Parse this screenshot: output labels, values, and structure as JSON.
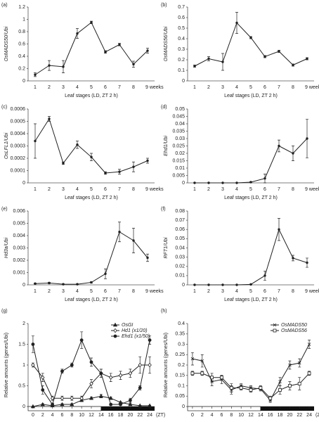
{
  "chart_data": [
    {
      "label": "(a)",
      "type": "line",
      "ylabel": "OsMADS50/Ubi",
      "xlabel": "Leaf stages (LD, ZT 2 h)",
      "color": "#222222",
      "marker": "dot",
      "categories": [
        "1",
        "2",
        "3",
        "4",
        "5",
        "6",
        "7",
        "8",
        "9 weeks"
      ],
      "values": [
        0.1,
        0.25,
        0.23,
        0.77,
        0.95,
        0.47,
        0.59,
        0.27,
        0.49
      ],
      "errors": [
        0.03,
        0.08,
        0.1,
        0.08,
        0.02,
        0.02,
        0.02,
        0.05,
        0.04
      ],
      "ylim": [
        0,
        1.2
      ],
      "yticks": [
        0,
        0.2,
        0.4,
        0.6,
        0.8,
        1,
        1.2
      ]
    },
    {
      "label": "(b)",
      "type": "line",
      "ylabel": "OsMADS56/Ubi",
      "xlabel": "Leaf stages (LD, ZT 2 h)",
      "color": "#222222",
      "marker": "dot",
      "categories": [
        "1",
        "2",
        "3",
        "4",
        "5",
        "6",
        "7",
        "8",
        "9 weeks"
      ],
      "values": [
        0.14,
        0.21,
        0.18,
        0.55,
        0.41,
        0.23,
        0.28,
        0.15,
        0.21
      ],
      "errors": [
        0.01,
        0.02,
        0.08,
        0.1,
        0.01,
        0.01,
        0.01,
        0.01,
        0.01
      ],
      "ylim": [
        0,
        0.7
      ],
      "yticks": [
        0,
        0.1,
        0.2,
        0.3,
        0.4,
        0.5,
        0.6,
        0.7
      ]
    },
    {
      "label": "(c)",
      "type": "line",
      "ylabel": "OsLFL1/Ubi",
      "xlabel": "Leaf stages (LD, ZT 2 h)",
      "color": "#222222",
      "marker": "dot",
      "categories": [
        "1",
        "2",
        "3",
        "4",
        "5",
        "6",
        "7",
        "8",
        "9 weeks"
      ],
      "values": [
        0.00034,
        0.00052,
        0.00016,
        0.00031,
        0.00021,
        8e-05,
        9e-05,
        0.00013,
        0.00018
      ],
      "errors": [
        0.00014,
        2e-05,
        1e-05,
        3e-05,
        3e-05,
        1e-05,
        2e-05,
        4e-05,
        2e-05
      ],
      "ylim": [
        0,
        0.0006
      ],
      "yticks": [
        0,
        0.0001,
        0.0002,
        0.0003,
        0.0004,
        0.0005,
        0.0006
      ]
    },
    {
      "label": "(d)",
      "type": "line",
      "ylabel": "Ehd1/Ubi",
      "xlabel": "Leaf stages (LD, ZT 2 h)",
      "color": "#222222",
      "marker": "dot",
      "categories": [
        "1",
        "2",
        "3",
        "4",
        "5",
        "6",
        "7",
        "8",
        "9 weeks"
      ],
      "values": [
        0,
        0,
        0,
        0,
        0.0005,
        0.003,
        0.025,
        0.02,
        0.03
      ],
      "errors": [
        0,
        0,
        0,
        0,
        0.0003,
        0.003,
        0.004,
        0.005,
        0.013
      ],
      "ylim": [
        0,
        0.05
      ],
      "yticks": [
        0,
        0.005,
        0.01,
        0.015,
        0.02,
        0.025,
        0.03,
        0.035,
        0.04,
        0.045,
        0.05
      ]
    },
    {
      "label": "(e)",
      "type": "line",
      "ylabel": "Hd3a/Ubi",
      "xlabel": "Leaf stages (LD, ZT 2 h)",
      "color": "#222222",
      "marker": "dot",
      "categories": [
        "1",
        "2",
        "3",
        "4",
        "5",
        "6",
        "7",
        "8",
        "9 weeks"
      ],
      "values": [
        0.0001,
        0.00015,
        5e-05,
        5e-05,
        0.0002,
        0.0009,
        0.0043,
        0.0036,
        0.0022
      ],
      "errors": [
        3e-05,
        5e-05,
        2e-05,
        2e-05,
        5e-05,
        0.0004,
        0.0008,
        0.001,
        0.0003
      ],
      "ylim": [
        0,
        0.006
      ],
      "yticks": [
        0,
        0.001,
        0.002,
        0.003,
        0.004,
        0.005,
        0.006
      ]
    },
    {
      "label": "(f)",
      "type": "line",
      "ylabel": "RFT1/Ubi",
      "xlabel": "Leaf stages (LD, ZT 2 h)",
      "color": "#222222",
      "marker": "dot",
      "categories": [
        "1",
        "2",
        "3",
        "4",
        "5",
        "6",
        "7",
        "8",
        "9 weeks"
      ],
      "values": [
        0,
        0,
        0,
        0,
        0.0005,
        0.01,
        0.06,
        0.029,
        0.024
      ],
      "errors": [
        0,
        0,
        0,
        0,
        0.0003,
        0.005,
        0.012,
        0.003,
        0.005
      ],
      "ylim": [
        0,
        0.08
      ],
      "yticks": [
        0,
        0.01,
        0.02,
        0.03,
        0.04,
        0.05,
        0.06,
        0.07,
        0.08
      ]
    },
    {
      "label": "(g)",
      "type": "line",
      "ylabel": "Relative amounts (genes/Ubi)",
      "xunit": "(ZT)",
      "color": "#222222",
      "x": [
        0,
        2,
        4,
        6,
        8,
        10,
        12,
        14,
        16,
        18,
        20,
        22,
        24
      ],
      "xlim": [
        -1,
        25
      ],
      "xticks": [
        0,
        2,
        4,
        6,
        8,
        10,
        12,
        14,
        16,
        18,
        20,
        22,
        24
      ],
      "dark": [
        14,
        24
      ],
      "series": [
        {
          "name": "OsGI",
          "marker": "triangle",
          "values": [
            0,
            0.05,
            0.02,
            0.05,
            0.05,
            0.15,
            0.2,
            0.25,
            0.2,
            0.1,
            0.05,
            0.02,
            0.02
          ],
          "errors": [
            0.01,
            0.02,
            0.01,
            0.02,
            0.02,
            0.03,
            0.03,
            0.04,
            0.03,
            0.02,
            0.02,
            0.01,
            0.01
          ]
        },
        {
          "name": "Hd1 (x1/20)",
          "marker": "diamond",
          "values": [
            1,
            0.7,
            0.2,
            0.2,
            0.2,
            0.2,
            0.55,
            0.8,
            0.7,
            0.75,
            0.8,
            1,
            1
          ],
          "errors": [
            0.05,
            0.1,
            0.05,
            0.05,
            0.05,
            0.05,
            0.1,
            0.1,
            0.1,
            0.1,
            0.1,
            0.2,
            0.2
          ]
        },
        {
          "name": "Ehd1 (x1/50)",
          "marker": "circle",
          "values": [
            1.5,
            0.4,
            0.05,
            0.85,
            1,
            1.6,
            1.07,
            0.8,
            0.05,
            0.05,
            0.15,
            0.45,
            1.6
          ],
          "errors": [
            0.2,
            0.1,
            0.03,
            0.05,
            0.05,
            0.2,
            0.1,
            0.1,
            0.02,
            0.02,
            0.05,
            0.05,
            0.1
          ]
        }
      ],
      "legend": "top-right",
      "ylim": [
        0,
        2
      ],
      "yticks": [
        0,
        0.5,
        1,
        1.5,
        2
      ]
    },
    {
      "label": "(h)",
      "type": "line",
      "ylabel": "Relative amounts (genes/Ubi)",
      "xunit": "(ZT)",
      "color": "#222222",
      "x": [
        0,
        2,
        4,
        6,
        8,
        10,
        12,
        14,
        16,
        18,
        20,
        22,
        24
      ],
      "xlim": [
        -1,
        25
      ],
      "xticks": [
        0,
        2,
        4,
        6,
        8,
        10,
        12,
        14,
        16,
        18,
        20,
        22,
        24
      ],
      "dark": [
        14,
        24
      ],
      "series": [
        {
          "name": "OsMADS50",
          "marker": "cross",
          "values": [
            0.23,
            0.22,
            0.12,
            0.13,
            0.08,
            0.1,
            0.09,
            0.085,
            0.03,
            0.12,
            0.2,
            0.21,
            0.3
          ],
          "errors": [
            0.03,
            0.03,
            0.02,
            0.02,
            0.02,
            0.01,
            0.01,
            0.01,
            0.01,
            0.02,
            0.02,
            0.02,
            0.02
          ]
        },
        {
          "name": "OsMADS56",
          "marker": "square",
          "values": [
            0.16,
            0.16,
            0.14,
            0.14,
            0.09,
            0.09,
            0.08,
            0.09,
            0.04,
            0.08,
            0.1,
            0.11,
            0.16
          ],
          "errors": [
            0.01,
            0.01,
            0.02,
            0.01,
            0.02,
            0.01,
            0.01,
            0.01,
            0.01,
            0.02,
            0.02,
            0.03,
            0.01
          ]
        }
      ],
      "legend": "top-right",
      "ylim": [
        0,
        0.4
      ],
      "yticks": [
        0,
        0.05,
        0.1,
        0.15,
        0.2,
        0.25,
        0.3,
        0.35,
        0.4
      ]
    }
  ]
}
